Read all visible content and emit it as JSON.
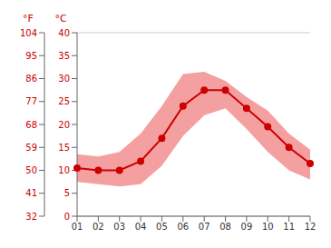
{
  "chart_data": {
    "type": "line",
    "categories": [
      "01",
      "02",
      "03",
      "04",
      "05",
      "06",
      "07",
      "08",
      "09",
      "10",
      "11",
      "12"
    ],
    "series": [
      {
        "type": "range",
        "color": "#f5a0a0",
        "low": [
          7.5,
          7.0,
          6.5,
          7.0,
          11.0,
          17.5,
          22.0,
          23.5,
          19.0,
          14.0,
          10.0,
          8.0
        ],
        "high": [
          13.5,
          13.0,
          14.0,
          18.0,
          24.0,
          31.0,
          31.5,
          29.5,
          26.0,
          23.0,
          18.0,
          14.5
        ]
      },
      {
        "type": "line",
        "color": "#cc0000",
        "marker": "circle",
        "values": [
          10.5,
          10.0,
          10.0,
          12.0,
          17.0,
          24.0,
          27.5,
          27.5,
          23.5,
          19.5,
          15.0,
          11.5
        ]
      }
    ],
    "ylabel": "°C",
    "y2label": "°F",
    "ylim": [
      0,
      40
    ],
    "yticks": [
      0,
      5,
      10,
      15,
      20,
      25,
      30,
      35,
      40
    ],
    "y2lim": [
      32,
      104
    ],
    "y2ticks": [
      32,
      41,
      50,
      59,
      68,
      77,
      86,
      95,
      104
    ],
    "grid": true
  }
}
